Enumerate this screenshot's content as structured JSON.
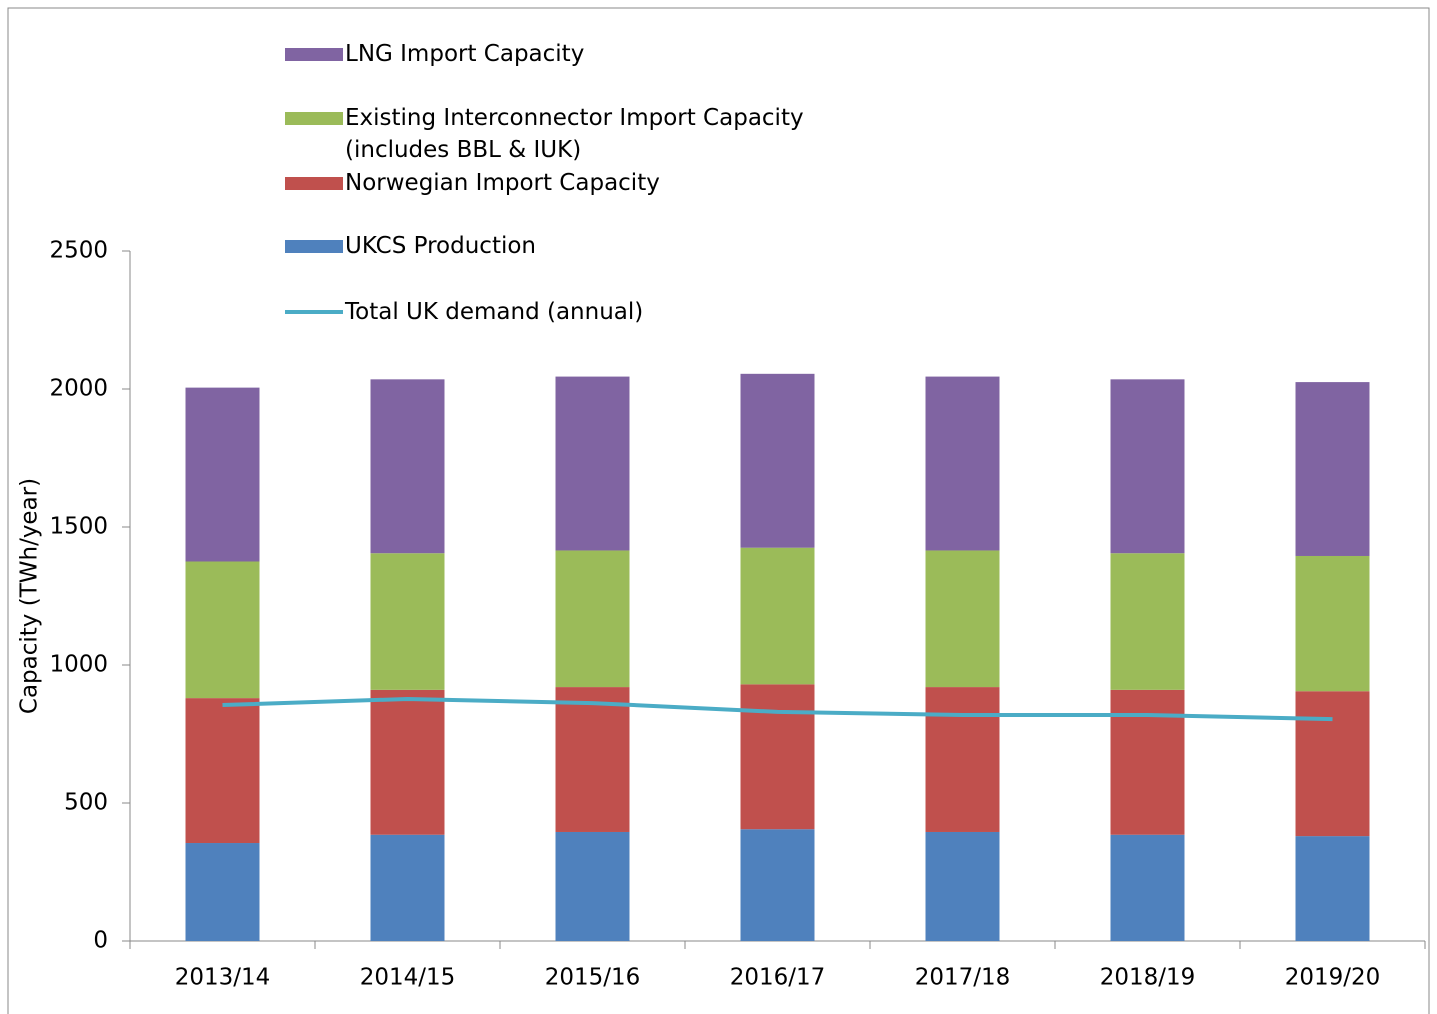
{
  "chart_data": {
    "type": "bar",
    "stacked": true,
    "y_label": "Capacity (TWh/year)",
    "categories": [
      "2013/14",
      "2014/15",
      "2015/16",
      "2016/17",
      "2017/18",
      "2018/19",
      "2019/20"
    ],
    "series": [
      {
        "name": "UKCS Production",
        "color": "#4f81bd",
        "values": [
          355,
          385,
          395,
          405,
          395,
          385,
          380
        ]
      },
      {
        "name": "Norwegian Import Capacity",
        "color": "#c0504d",
        "values": [
          525,
          525,
          525,
          525,
          525,
          525,
          525
        ]
      },
      {
        "name": "Existing Interconnector Import Capacity (includes BBL & IUK)",
        "color": "#9bbb59",
        "values": [
          495,
          495,
          495,
          495,
          495,
          495,
          490
        ]
      },
      {
        "name": "LNG Import Capacity",
        "color": "#8064a2",
        "values": [
          630,
          630,
          630,
          630,
          630,
          630,
          630
        ]
      },
      {
        "name": "Total UK demand (annual)",
        "type": "line",
        "color": "#4bacc6",
        "values": [
          855,
          877,
          862,
          830,
          819,
          819,
          804
        ]
      }
    ],
    "ylim": [
      0,
      2500
    ],
    "yticks": [
      0,
      500,
      1000,
      1500,
      2000,
      2500
    ],
    "legend": "top"
  }
}
